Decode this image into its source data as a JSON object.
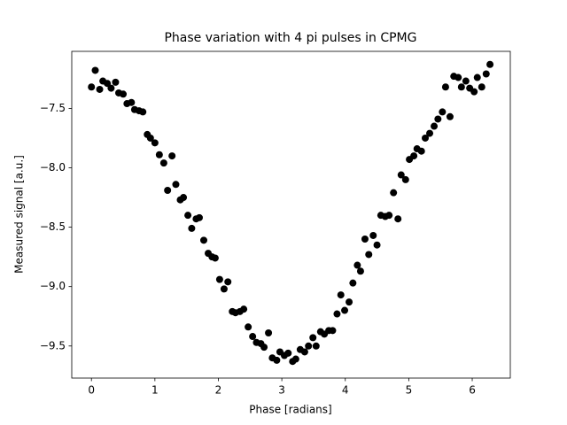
{
  "chart_data": {
    "type": "scatter",
    "title": "Phase variation with 4 pi pulses in CPMG",
    "xlabel": "Phase [radians]",
    "ylabel": "Measured signal [a.u.]",
    "xlim": [
      -0.31,
      6.6
    ],
    "ylim": [
      -9.77,
      -7.02
    ],
    "xticks": [
      0,
      1,
      2,
      3,
      4,
      5,
      6
    ],
    "yticks": [
      {
        "value": -9.5,
        "label": "−9.5"
      },
      {
        "value": -9.0,
        "label": "−9.0"
      },
      {
        "value": -8.5,
        "label": "−8.5"
      },
      {
        "value": -8.0,
        "label": "−8.0"
      },
      {
        "value": -7.5,
        "label": "−7.5"
      }
    ],
    "color": "#000000",
    "x": [
      0.0,
      0.06,
      0.13,
      0.18,
      0.25,
      0.31,
      0.38,
      0.43,
      0.5,
      0.56,
      0.63,
      0.68,
      0.75,
      0.81,
      0.88,
      0.93,
      1.0,
      1.07,
      1.14,
      1.2,
      1.27,
      1.33,
      1.4,
      1.45,
      1.52,
      1.58,
      1.65,
      1.7,
      1.77,
      1.84,
      1.9,
      1.95,
      2.02,
      2.09,
      2.15,
      2.22,
      2.27,
      2.34,
      2.4,
      2.47,
      2.54,
      2.6,
      2.67,
      2.72,
      2.79,
      2.85,
      2.92,
      2.97,
      3.04,
      3.1,
      3.17,
      3.22,
      3.29,
      3.36,
      3.42,
      3.49,
      3.54,
      3.61,
      3.67,
      3.74,
      3.8,
      3.87,
      3.93,
      3.99,
      4.06,
      4.12,
      4.19,
      4.24,
      4.31,
      4.37,
      4.44,
      4.5,
      4.56,
      4.63,
      4.69,
      4.76,
      4.83,
      4.88,
      4.95,
      5.01,
      5.08,
      5.13,
      5.2,
      5.26,
      5.33,
      5.4,
      5.46,
      5.53,
      5.58,
      5.65,
      5.71,
      5.78,
      5.83,
      5.9,
      5.96,
      6.03,
      6.08,
      6.15,
      6.22,
      6.28
    ],
    "values": [
      -7.32,
      -7.18,
      -7.34,
      -7.27,
      -7.29,
      -7.33,
      -7.28,
      -7.37,
      -7.38,
      -7.46,
      -7.45,
      -7.51,
      -7.52,
      -7.53,
      -7.72,
      -7.75,
      -7.79,
      -7.89,
      -7.96,
      -8.19,
      -7.9,
      -8.14,
      -8.27,
      -8.25,
      -8.4,
      -8.51,
      -8.43,
      -8.42,
      -8.61,
      -8.72,
      -8.75,
      -8.76,
      -8.94,
      -9.02,
      -8.96,
      -9.21,
      -9.22,
      -9.21,
      -9.19,
      -9.34,
      -9.42,
      -9.47,
      -9.48,
      -9.51,
      -9.39,
      -9.6,
      -9.62,
      -9.55,
      -9.58,
      -9.56,
      -9.63,
      -9.61,
      -9.53,
      -9.55,
      -9.5,
      -9.43,
      -9.5,
      -9.38,
      -9.4,
      -9.37,
      -9.37,
      -9.23,
      -9.07,
      -9.2,
      -9.13,
      -8.97,
      -8.82,
      -8.87,
      -8.6,
      -8.73,
      -8.57,
      -8.65,
      -8.4,
      -8.41,
      -8.4,
      -8.21,
      -8.43,
      -8.06,
      -8.1,
      -7.93,
      -7.9,
      -7.84,
      -7.86,
      -7.75,
      -7.71,
      -7.65,
      -7.59,
      -7.53,
      -7.32,
      -7.57,
      -7.23,
      -7.24,
      -7.32,
      -7.27,
      -7.33,
      -7.36,
      -7.24,
      -7.32,
      -7.21,
      -7.13
    ]
  }
}
